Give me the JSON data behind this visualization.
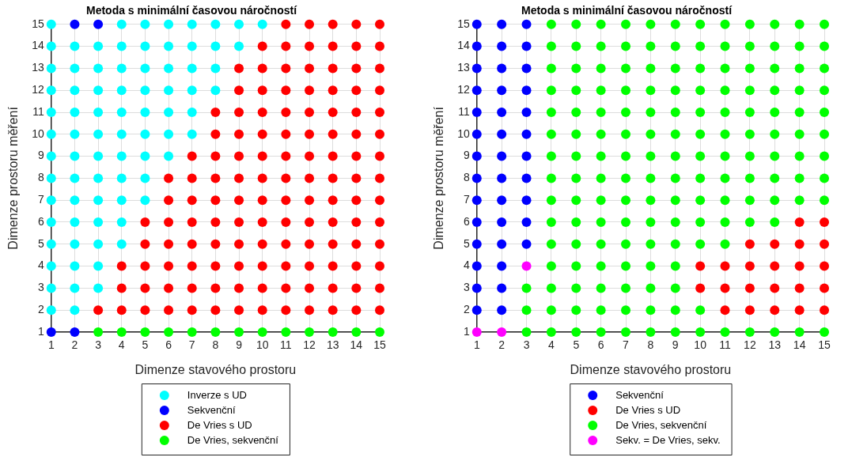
{
  "chart_data": [
    {
      "type": "scatter",
      "title": "Metoda s minimální časovou náročností",
      "xlabel": "Dimenze stavového prostoru",
      "ylabel": "Dimenze prostoru měření",
      "xlim": [
        1,
        15
      ],
      "ylim": [
        1,
        15
      ],
      "xticks": [
        1,
        2,
        3,
        4,
        5,
        6,
        7,
        8,
        9,
        10,
        11,
        12,
        13,
        14,
        15
      ],
      "yticks": [
        1,
        2,
        3,
        4,
        5,
        6,
        7,
        8,
        9,
        10,
        11,
        12,
        13,
        14,
        15
      ],
      "grid": true,
      "legend": "bottom",
      "marker": "circle",
      "series": [
        {
          "name": "Inverze s UD",
          "color": "#00ffff",
          "x": [
            1,
            4,
            5,
            6,
            7,
            8,
            9,
            10,
            1,
            2,
            3,
            4,
            5,
            6,
            7,
            8,
            9,
            1,
            2,
            3,
            4,
            5,
            6,
            7,
            8,
            1,
            2,
            3,
            4,
            5,
            6,
            7,
            8,
            1,
            2,
            3,
            4,
            5,
            6,
            7,
            1,
            2,
            3,
            4,
            5,
            6,
            7,
            1,
            2,
            3,
            4,
            5,
            6,
            1,
            2,
            3,
            4,
            5,
            1,
            2,
            3,
            4,
            5,
            1,
            2,
            3,
            4,
            1,
            2,
            3,
            4,
            1,
            2,
            3,
            1,
            2,
            3,
            1,
            2
          ],
          "values": [
            15,
            15,
            15,
            15,
            15,
            15,
            15,
            15,
            14,
            14,
            14,
            14,
            14,
            14,
            14,
            14,
            14,
            13,
            13,
            13,
            13,
            13,
            13,
            13,
            13,
            12,
            12,
            12,
            12,
            12,
            12,
            12,
            12,
            11,
            11,
            11,
            11,
            11,
            11,
            11,
            10,
            10,
            10,
            10,
            10,
            10,
            10,
            9,
            9,
            9,
            9,
            9,
            9,
            8,
            8,
            8,
            8,
            8,
            7,
            7,
            7,
            7,
            7,
            6,
            6,
            6,
            6,
            5,
            5,
            5,
            5,
            4,
            4,
            4,
            3,
            3,
            3,
            2,
            2
          ]
        },
        {
          "name": "Sekvenční",
          "color": "#0000ff",
          "x": [
            2,
            3,
            1,
            2
          ],
          "values": [
            15,
            15,
            1,
            1
          ]
        },
        {
          "name": "De Vries s UD",
          "color": "#ff0000",
          "x": [
            11,
            12,
            13,
            14,
            15,
            10,
            11,
            12,
            13,
            14,
            15,
            9,
            10,
            11,
            12,
            13,
            14,
            15,
            9,
            10,
            11,
            12,
            13,
            14,
            15,
            8,
            9,
            10,
            11,
            12,
            13,
            14,
            15,
            8,
            9,
            10,
            11,
            12,
            13,
            14,
            15,
            7,
            8,
            9,
            10,
            11,
            12,
            13,
            14,
            15,
            6,
            7,
            8,
            9,
            10,
            11,
            12,
            13,
            14,
            15,
            6,
            7,
            8,
            9,
            10,
            11,
            12,
            13,
            14,
            15,
            5,
            6,
            7,
            8,
            9,
            10,
            11,
            12,
            13,
            14,
            15,
            5,
            6,
            7,
            8,
            9,
            10,
            11,
            12,
            13,
            14,
            15,
            4,
            5,
            6,
            7,
            8,
            9,
            10,
            11,
            12,
            13,
            14,
            15,
            4,
            5,
            6,
            7,
            8,
            9,
            10,
            11,
            12,
            13,
            14,
            15,
            3,
            4,
            5,
            6,
            7,
            8,
            9,
            10,
            11,
            12,
            13,
            14,
            15
          ],
          "values": [
            15,
            15,
            15,
            15,
            15,
            14,
            14,
            14,
            14,
            14,
            14,
            13,
            13,
            13,
            13,
            13,
            13,
            13,
            12,
            12,
            12,
            12,
            12,
            12,
            12,
            11,
            11,
            11,
            11,
            11,
            11,
            11,
            11,
            10,
            10,
            10,
            10,
            10,
            10,
            10,
            10,
            9,
            9,
            9,
            9,
            9,
            9,
            9,
            9,
            9,
            8,
            8,
            8,
            8,
            8,
            8,
            8,
            8,
            8,
            8,
            7,
            7,
            7,
            7,
            7,
            7,
            7,
            7,
            7,
            7,
            6,
            6,
            6,
            6,
            6,
            6,
            6,
            6,
            6,
            6,
            6,
            5,
            5,
            5,
            5,
            5,
            5,
            5,
            5,
            5,
            5,
            5,
            4,
            4,
            4,
            4,
            4,
            4,
            4,
            4,
            4,
            4,
            4,
            4,
            3,
            3,
            3,
            3,
            3,
            3,
            3,
            3,
            3,
            3,
            3,
            3,
            2,
            2,
            2,
            2,
            2,
            2,
            2,
            2,
            2,
            2,
            2,
            2,
            2
          ]
        },
        {
          "name": "De Vries, sekvenční",
          "color": "#00ff00",
          "x": [
            3,
            4,
            5,
            6,
            7,
            8,
            9,
            10,
            11,
            12,
            13,
            14,
            15
          ],
          "values": [
            1,
            1,
            1,
            1,
            1,
            1,
            1,
            1,
            1,
            1,
            1,
            1,
            1
          ]
        }
      ]
    },
    {
      "type": "scatter",
      "title": "Metoda s minimální časovou náročností",
      "xlabel": "Dimenze stavového prostoru",
      "ylabel": "Dimenze prostoru měření",
      "xlim": [
        1,
        15
      ],
      "ylim": [
        1,
        15
      ],
      "xticks": [
        1,
        2,
        3,
        4,
        5,
        6,
        7,
        8,
        9,
        10,
        11,
        12,
        13,
        14,
        15
      ],
      "yticks": [
        1,
        2,
        3,
        4,
        5,
        6,
        7,
        8,
        9,
        10,
        11,
        12,
        13,
        14,
        15
      ],
      "grid": true,
      "legend": "bottom",
      "marker": "circle",
      "series": [
        {
          "name": "Sekvenční",
          "color": "#0000ff",
          "x": [
            1,
            2,
            3,
            1,
            2,
            3,
            1,
            2,
            3,
            1,
            2,
            3,
            1,
            2,
            3,
            1,
            2,
            3,
            1,
            2,
            3,
            1,
            2,
            3,
            1,
            2,
            3,
            1,
            2,
            3,
            1,
            2,
            3,
            1,
            2,
            1,
            2,
            1,
            2
          ],
          "values": [
            15,
            15,
            15,
            14,
            14,
            14,
            13,
            13,
            13,
            12,
            12,
            12,
            11,
            11,
            11,
            10,
            10,
            10,
            9,
            9,
            9,
            8,
            8,
            8,
            7,
            7,
            7,
            6,
            6,
            6,
            5,
            5,
            5,
            4,
            4,
            3,
            3,
            2,
            2
          ]
        },
        {
          "name": "De Vries s UD",
          "color": "#ff0000",
          "x": [
            14,
            15,
            12,
            13,
            14,
            15,
            10,
            11,
            12,
            13,
            14,
            15,
            10,
            11,
            12,
            13,
            14,
            15,
            11,
            12,
            13,
            14,
            15
          ],
          "values": [
            6,
            6,
            5,
            5,
            5,
            5,
            4,
            4,
            4,
            4,
            4,
            4,
            3,
            3,
            3,
            3,
            3,
            3,
            2,
            2,
            2,
            2,
            2
          ]
        },
        {
          "name": "De Vries, sekvenční",
          "color": "#00ff00",
          "x": [
            4,
            5,
            6,
            7,
            8,
            9,
            10,
            11,
            12,
            13,
            14,
            15,
            4,
            5,
            6,
            7,
            8,
            9,
            10,
            11,
            12,
            13,
            14,
            15,
            4,
            5,
            6,
            7,
            8,
            9,
            10,
            11,
            12,
            13,
            14,
            15,
            4,
            5,
            6,
            7,
            8,
            9,
            10,
            11,
            12,
            13,
            14,
            15,
            4,
            5,
            6,
            7,
            8,
            9,
            10,
            11,
            12,
            13,
            14,
            15,
            4,
            5,
            6,
            7,
            8,
            9,
            10,
            11,
            12,
            13,
            14,
            15,
            4,
            5,
            6,
            7,
            8,
            9,
            10,
            11,
            12,
            13,
            14,
            15,
            4,
            5,
            6,
            7,
            8,
            9,
            10,
            11,
            12,
            13,
            14,
            15,
            4,
            5,
            6,
            7,
            8,
            9,
            10,
            11,
            12,
            13,
            14,
            15,
            4,
            5,
            6,
            7,
            8,
            9,
            10,
            11,
            12,
            13,
            4,
            5,
            6,
            7,
            8,
            9,
            10,
            11,
            4,
            5,
            6,
            7,
            8,
            9,
            3,
            4,
            5,
            6,
            7,
            8,
            9,
            3,
            4,
            5,
            6,
            7,
            8,
            9,
            10,
            3,
            4,
            5,
            6,
            7,
            8,
            9,
            10,
            11,
            12,
            13,
            14,
            15
          ],
          "values": [
            15,
            15,
            15,
            15,
            15,
            15,
            15,
            15,
            15,
            15,
            15,
            15,
            14,
            14,
            14,
            14,
            14,
            14,
            14,
            14,
            14,
            14,
            14,
            14,
            13,
            13,
            13,
            13,
            13,
            13,
            13,
            13,
            13,
            13,
            13,
            13,
            12,
            12,
            12,
            12,
            12,
            12,
            12,
            12,
            12,
            12,
            12,
            12,
            11,
            11,
            11,
            11,
            11,
            11,
            11,
            11,
            11,
            11,
            11,
            11,
            10,
            10,
            10,
            10,
            10,
            10,
            10,
            10,
            10,
            10,
            10,
            10,
            9,
            9,
            9,
            9,
            9,
            9,
            9,
            9,
            9,
            9,
            9,
            9,
            8,
            8,
            8,
            8,
            8,
            8,
            8,
            8,
            8,
            8,
            8,
            8,
            7,
            7,
            7,
            7,
            7,
            7,
            7,
            7,
            7,
            7,
            7,
            7,
            6,
            6,
            6,
            6,
            6,
            6,
            6,
            6,
            6,
            6,
            5,
            5,
            5,
            5,
            5,
            5,
            5,
            5,
            4,
            4,
            4,
            4,
            4,
            4,
            3,
            3,
            3,
            3,
            3,
            3,
            3,
            2,
            2,
            2,
            2,
            2,
            2,
            2,
            2,
            1,
            1,
            1,
            1,
            1,
            1,
            1,
            1,
            1,
            1,
            1,
            1,
            1
          ]
        },
        {
          "name": "Sekv. = De Vries, sekv.",
          "color": "#ff00ff",
          "x": [
            1,
            2,
            3
          ],
          "values": [
            1,
            1,
            4
          ]
        }
      ]
    }
  ]
}
